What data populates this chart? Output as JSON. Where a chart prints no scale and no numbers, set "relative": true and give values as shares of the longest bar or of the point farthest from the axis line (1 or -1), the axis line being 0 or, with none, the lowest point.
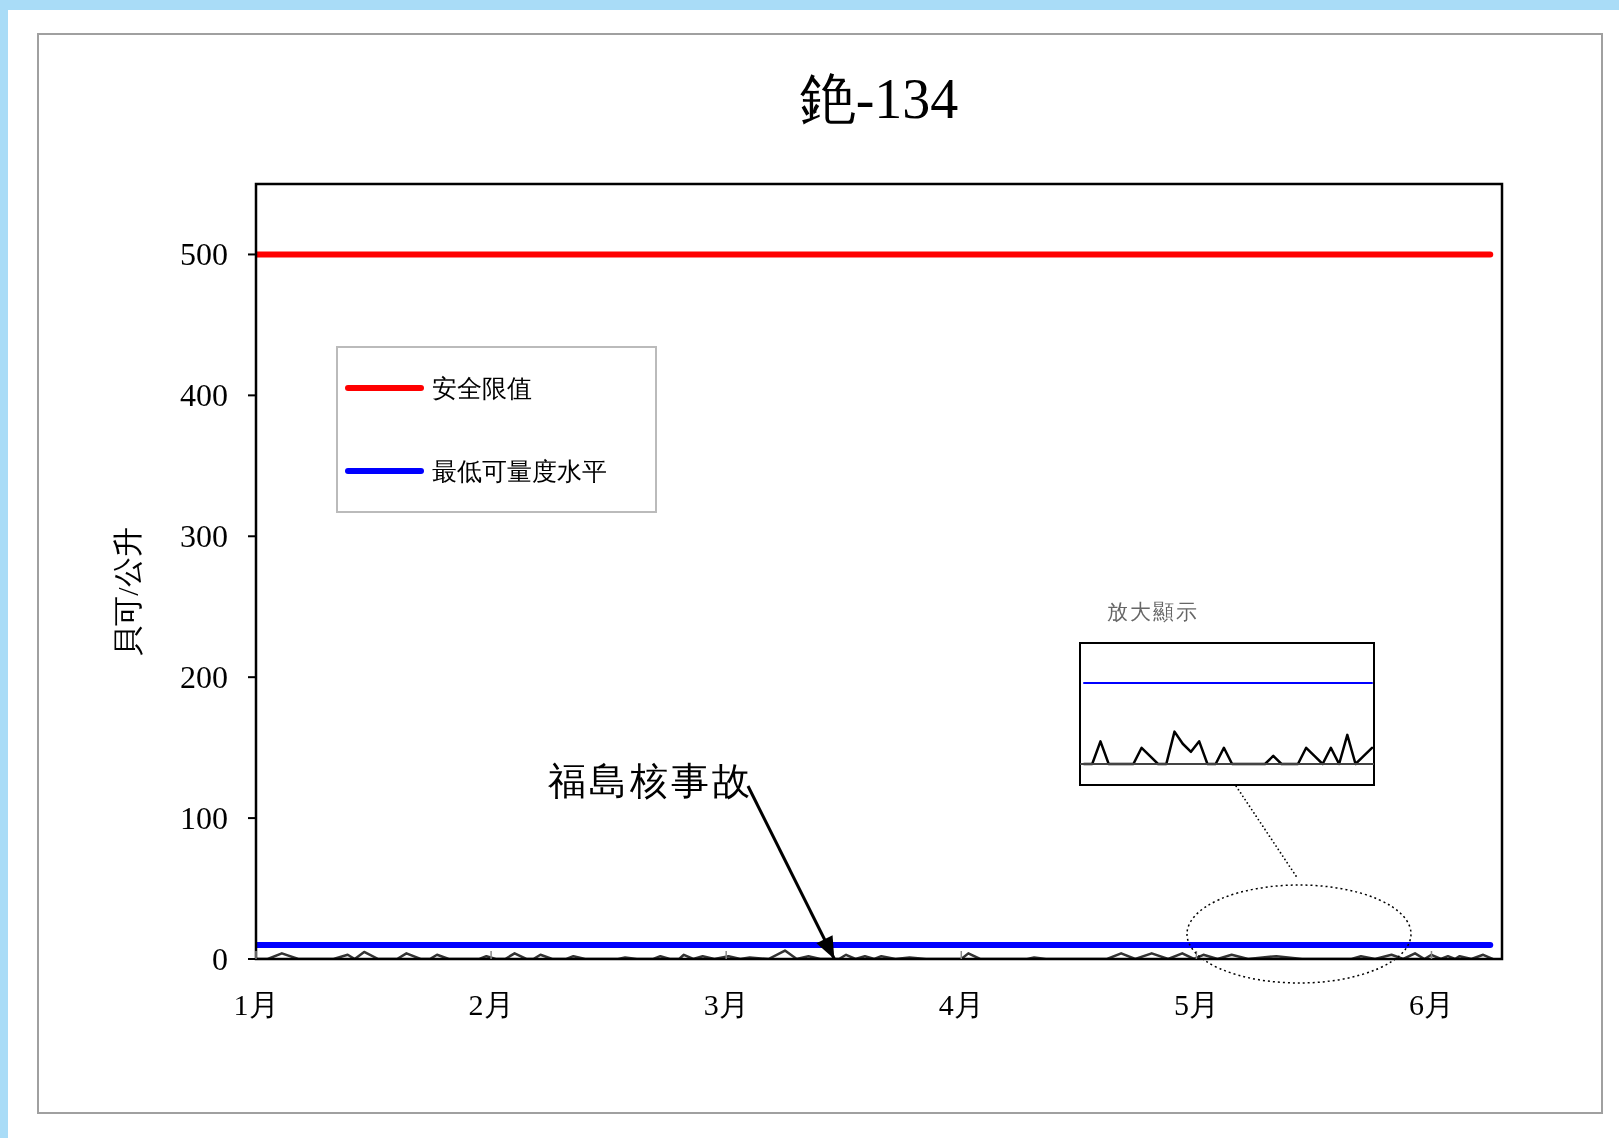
{
  "chart_data": [
    {
      "type": "line",
      "title": "銫-134",
      "ylabel": "貝可/公升",
      "xlim": [
        1,
        6.3
      ],
      "xticks": [
        {
          "value": 1,
          "label": "1月"
        },
        {
          "value": 2,
          "label": "2月"
        },
        {
          "value": 3,
          "label": "3月"
        },
        {
          "value": 4,
          "label": "4月"
        },
        {
          "value": 5,
          "label": "5月"
        },
        {
          "value": 6,
          "label": "6月"
        }
      ],
      "ylim": [
        0,
        550
      ],
      "yticks": [
        0,
        100,
        200,
        300,
        400,
        500
      ],
      "legend": "top left",
      "series": [
        {
          "name": "安全限值",
          "color": "#ff0000",
          "x": [
            1,
            6.25
          ],
          "values": [
            500,
            500
          ]
        },
        {
          "name": "最低可量度水平",
          "color": "#0000ff",
          "x": [
            1,
            6.25
          ],
          "values": [
            10,
            10
          ]
        },
        {
          "color": "#333333",
          "x": [
            1.0,
            1.05,
            1.11,
            1.18,
            1.33,
            1.39,
            1.42,
            1.46,
            1.52,
            1.6,
            1.64,
            1.7,
            1.74,
            1.77,
            1.82,
            1.95,
            1.98,
            2.02,
            2.06,
            2.1,
            2.15,
            2.18,
            2.21,
            2.26,
            2.32,
            2.35,
            2.4,
            2.54,
            2.57,
            2.62,
            2.69,
            2.72,
            2.76,
            2.8,
            2.82,
            2.86,
            2.9,
            2.95,
            3.01,
            3.06,
            3.1,
            3.18,
            3.25,
            3.3,
            3.35,
            3.4,
            3.48,
            3.51,
            3.55,
            3.59,
            3.63,
            3.66,
            3.72,
            3.78,
            3.85,
            4.0,
            4.03,
            4.08,
            4.28,
            4.31,
            4.36,
            4.62,
            4.68,
            4.74,
            4.81,
            4.88,
            4.94,
            4.99,
            5.03,
            5.09,
            5.15,
            5.22,
            5.34,
            5.45,
            5.66,
            5.7,
            5.76,
            5.83,
            5.88,
            5.93,
            5.97,
            6.0,
            6.04,
            6.07,
            6.1,
            6.12,
            6.17,
            6.22,
            6.26
          ],
          "values": [
            0,
            0,
            4,
            0,
            0,
            3,
            0,
            5,
            0,
            0,
            4,
            0,
            0,
            3,
            0,
            0,
            2,
            0,
            0,
            4,
            0,
            0,
            3,
            0,
            0,
            2,
            0,
            0,
            1,
            0,
            0,
            2,
            0,
            0,
            3,
            0,
            2,
            0,
            2,
            0,
            1,
            0,
            6,
            0,
            2,
            0,
            0,
            3,
            0,
            2,
            0,
            2,
            0,
            1,
            0,
            0,
            4,
            0,
            0,
            1,
            0,
            0,
            4,
            0,
            4,
            0,
            4,
            0,
            3,
            0,
            3,
            0,
            2,
            0,
            0,
            2,
            0,
            3,
            0,
            4,
            0,
            3,
            0,
            2,
            0,
            2,
            0,
            3,
            0
          ]
        }
      ],
      "annotations": [
        {
          "text": "福島核事故",
          "x": 3.46,
          "y": 0
        }
      ]
    },
    {
      "type": "line",
      "relative": true,
      "categories": [
        null,
        null,
        null,
        null,
        null,
        null,
        null,
        null,
        null,
        null,
        null,
        null,
        null,
        null,
        null,
        null,
        null,
        null,
        null,
        null,
        null,
        null,
        null,
        null,
        null,
        null,
        null,
        null,
        null,
        null,
        null,
        null,
        null,
        null,
        null,
        null
      ],
      "series": [
        {
          "color": "#0000ff",
          "values": [
            1,
            1,
            1,
            1,
            1,
            1,
            1,
            1,
            1,
            1,
            1,
            1,
            1,
            1,
            1,
            1,
            1,
            1,
            1,
            1,
            1,
            1,
            1,
            1,
            1,
            1,
            1,
            1,
            1,
            1,
            1,
            1,
            1,
            1,
            1,
            1
          ]
        },
        {
          "color": "#000000",
          "values": [
            0,
            0,
            0.28,
            0,
            0,
            0,
            0,
            0.2,
            0.1,
            0,
            0,
            0.4,
            0.25,
            0.15,
            0.28,
            0,
            0,
            0.2,
            0,
            0,
            0,
            0,
            0,
            0.1,
            0,
            0,
            0,
            0.2,
            0.1,
            0,
            0.2,
            0,
            0.36,
            0,
            0.1,
            0.2
          ]
        }
      ],
      "annotations": [
        "放大顯示"
      ]
    }
  ]
}
